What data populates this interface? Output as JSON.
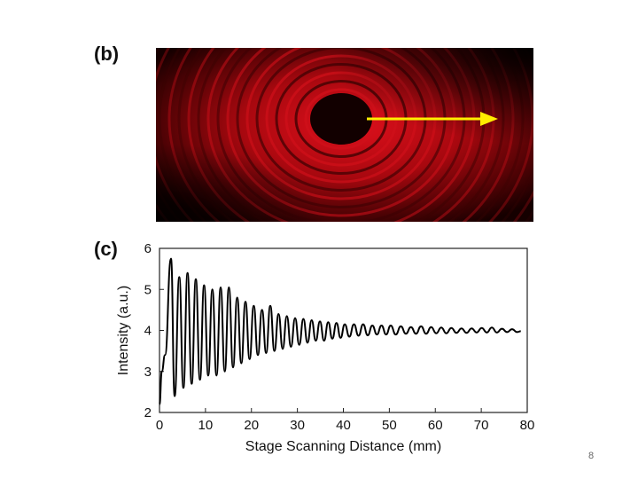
{
  "panels": {
    "photo_label": "(b)",
    "chart_label": "(c)"
  },
  "photo": {
    "arrow_color": "#ffee00",
    "ring_color": "#d0101a",
    "background_color": "#120000"
  },
  "chart_data": {
    "type": "line",
    "title": "",
    "xlabel": "Stage Scanning Distance (mm)",
    "ylabel": "Intensity (a.u.)",
    "xlim": [
      0,
      80
    ],
    "ylim": [
      2,
      6
    ],
    "xticks": [
      0,
      10,
      20,
      30,
      40,
      50,
      60,
      70,
      80
    ],
    "yticks": [
      2,
      3,
      4,
      5,
      6
    ],
    "grid": false,
    "legend": "none",
    "series": [
      {
        "x": [
          0,
          0.5,
          1.2,
          2.5,
          3.3,
          4.3,
          5.2,
          6.1,
          7.0,
          7.9,
          8.8,
          9.7,
          10.6,
          11.5,
          12.4,
          13.3,
          14.2,
          15.1,
          16.0,
          16.9,
          17.8,
          18.7,
          19.6,
          20.5,
          21.4,
          22.3,
          23.2,
          24.1,
          25.0,
          25.9,
          26.8,
          27.7,
          28.6,
          29.5,
          30.4,
          31.3,
          32.2,
          33.1,
          34.0,
          34.9,
          35.8,
          36.7,
          37.6,
          38.5,
          39.4,
          40.3,
          41.3,
          42.3,
          43.3,
          44.3,
          45.3,
          46.3,
          47.3,
          48.3,
          49.3,
          50.3,
          51.4,
          52.5,
          53.6,
          54.7,
          55.8,
          56.9,
          58.0,
          59.1,
          60.2,
          61.3,
          62.4,
          63.5,
          64.6,
          65.7,
          66.8,
          67.9,
          69.0,
          70.1,
          71.2,
          72.3,
          73.4,
          74.5,
          75.6,
          76.7,
          77.8,
          78.6
        ],
        "values": [
          2.2,
          3.0,
          3.4,
          5.75,
          2.4,
          5.3,
          2.6,
          5.4,
          2.7,
          5.25,
          2.8,
          5.1,
          2.9,
          5.0,
          2.9,
          5.05,
          3.0,
          5.05,
          3.1,
          4.8,
          3.2,
          4.7,
          3.3,
          4.6,
          3.4,
          4.5,
          3.45,
          4.6,
          3.5,
          4.4,
          3.55,
          4.35,
          3.6,
          4.3,
          3.65,
          4.28,
          3.7,
          4.25,
          3.75,
          4.22,
          3.75,
          4.2,
          3.8,
          4.18,
          3.82,
          4.15,
          3.85,
          4.15,
          3.87,
          4.15,
          3.88,
          4.12,
          3.9,
          4.12,
          3.9,
          4.12,
          3.9,
          4.1,
          3.92,
          4.08,
          3.92,
          4.1,
          3.92,
          4.08,
          3.93,
          4.07,
          3.93,
          4.06,
          3.94,
          4.05,
          3.94,
          4.05,
          3.95,
          4.06,
          3.95,
          4.07,
          3.95,
          4.04,
          3.96,
          4.03,
          3.96,
          3.98
        ],
        "color": "#000000"
      }
    ]
  },
  "footer": {
    "page_number": "8"
  }
}
